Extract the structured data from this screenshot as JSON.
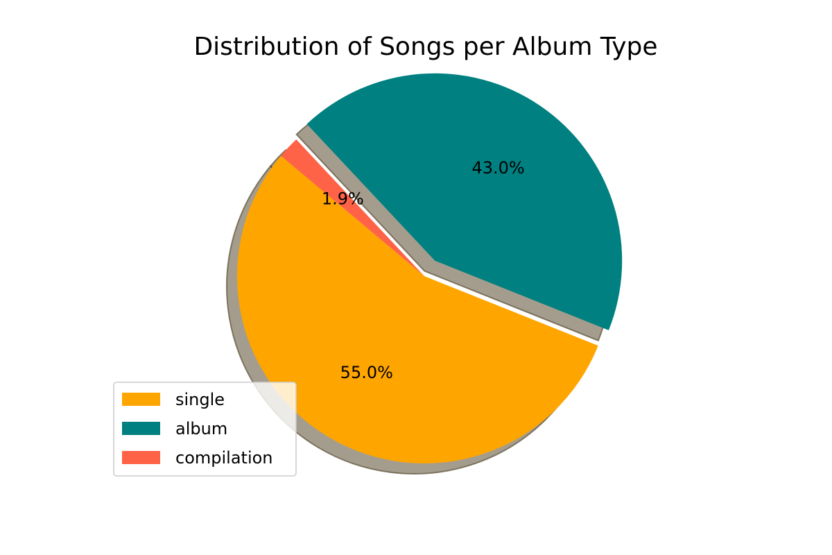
{
  "chart_data": {
    "type": "pie",
    "title": "Distribution of Songs per Album Type",
    "categories": [
      "single",
      "album",
      "compilation"
    ],
    "values": [
      55.0,
      43.0,
      1.9
    ],
    "labels": [
      "55.0%",
      "43.0%",
      "1.9%"
    ],
    "colors": [
      "#FFA500",
      "#008080",
      "#FF6347"
    ],
    "explode": [
      0.0,
      0.1,
      0.0
    ],
    "shadow": true,
    "start_angle": 140,
    "legend_placement": "lower-left",
    "grid": false
  }
}
